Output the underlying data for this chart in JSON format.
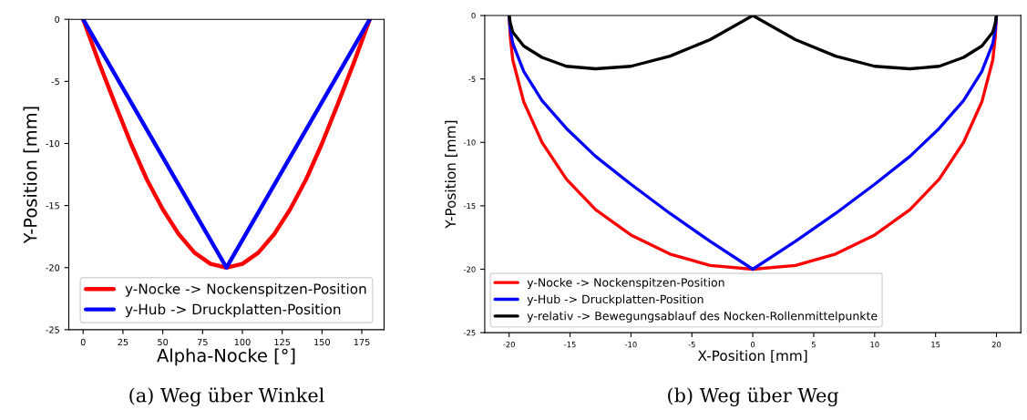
{
  "chart_data": [
    {
      "type": "line",
      "xlabel": "Alpha-Nocke [°]",
      "ylabel": "Y-Position [mm]",
      "xlim": [
        -9,
        189
      ],
      "xticks": [
        0,
        25,
        50,
        75,
        100,
        125,
        150,
        175
      ],
      "ylim": [
        -25,
        0
      ],
      "yticks": [
        -25,
        -20,
        -15,
        -10,
        -5,
        0
      ],
      "grid": false,
      "legend": "bottom",
      "annotations": [
        "(a) Weg über Winkel"
      ],
      "series": [
        {
          "name": "y-Nocke -> Nockenspitzen-Position",
          "color": "#ff0000",
          "x": [
            0,
            10,
            20,
            30,
            40,
            50,
            60,
            70,
            80,
            90,
            100,
            110,
            120,
            130,
            140,
            150,
            160,
            170,
            180
          ],
          "values": [
            0,
            -3.5,
            -6.8,
            -10,
            -12.9,
            -15.3,
            -17.3,
            -18.8,
            -19.7,
            -20,
            -19.7,
            -18.8,
            -17.3,
            -15.3,
            -12.9,
            -10,
            -6.8,
            -3.5,
            0
          ]
        },
        {
          "name": "y-Hub -> Druckplatten-Position",
          "color": "#0000ff",
          "x": [
            0,
            90,
            180
          ],
          "values": [
            0,
            -20,
            0
          ]
        }
      ]
    },
    {
      "type": "line",
      "xlabel": "X-Position [mm]",
      "ylabel": "Y-Position [mm]",
      "xlim": [
        -22,
        22
      ],
      "xticks": [
        -20,
        -15,
        -10,
        -5,
        0,
        5,
        10,
        15,
        20
      ],
      "ylim": [
        -25,
        0
      ],
      "yticks": [
        -25,
        -20,
        -15,
        -10,
        -5,
        0
      ],
      "grid": false,
      "legend": "bottom left",
      "annotations": [
        "(b) Weg über Weg"
      ],
      "series": [
        {
          "name": "y-Nocke -> Nockenspitzen-Position",
          "color": "#ff0000",
          "x": [
            -20,
            -19.9,
            -19.7,
            -18.8,
            -17.3,
            -15.3,
            -12.9,
            -10,
            -6.8,
            -3.5,
            0,
            3.5,
            6.8,
            10,
            12.9,
            15.3,
            17.3,
            18.8,
            19.7,
            19.9,
            20
          ],
          "values": [
            0,
            -1.7,
            -3.5,
            -6.8,
            -10,
            -12.9,
            -15.3,
            -17.3,
            -18.8,
            -19.7,
            -20,
            -19.7,
            -18.8,
            -17.3,
            -15.3,
            -12.9,
            -10,
            -6.8,
            -3.5,
            -1.7,
            0
          ]
        },
        {
          "name": "y-Hub -> Druckplatten-Position",
          "color": "#0000ff",
          "x": [
            -20,
            -19.9,
            -19.7,
            -18.8,
            -17.3,
            -15.3,
            -12.9,
            -10,
            -6.8,
            -3.5,
            0,
            3.5,
            6.8,
            10,
            12.9,
            15.3,
            17.3,
            18.8,
            19.7,
            19.9,
            20
          ],
          "values": [
            0,
            -1.1,
            -2.2,
            -4.4,
            -6.7,
            -8.9,
            -11.1,
            -13.3,
            -15.6,
            -17.8,
            -20,
            -17.8,
            -15.6,
            -13.3,
            -11.1,
            -8.9,
            -6.7,
            -4.4,
            -2.2,
            -1.1,
            0
          ]
        },
        {
          "name": "y-relativ -> Bewegungsablauf des Nocken-Rollenmittelpunkte",
          "color": "#000000",
          "x": [
            -20,
            -19.9,
            -19.7,
            -18.8,
            -17.3,
            -15.3,
            -12.9,
            -10,
            -6.8,
            -3.5,
            0,
            3.5,
            6.8,
            10,
            12.9,
            15.3,
            17.3,
            18.8,
            19.7,
            19.9,
            20
          ],
          "values": [
            0,
            -0.6,
            -1.3,
            -2.4,
            -3.3,
            -4.0,
            -4.2,
            -4.0,
            -3.2,
            -1.9,
            0,
            -1.9,
            -3.2,
            -4.0,
            -4.2,
            -4.0,
            -3.3,
            -2.4,
            -1.3,
            -0.6,
            0
          ]
        }
      ]
    }
  ]
}
